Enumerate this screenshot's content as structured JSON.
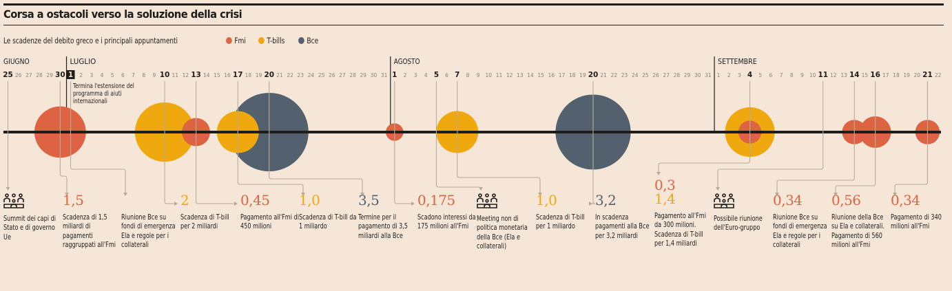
{
  "title": "Corsa a ostacoli verso la soluzione della crisi",
  "subtitle": "Le scadenze del debito greco e i principali appuntamenti",
  "legend": [
    {
      "label": "Fmi",
      "color": "#dd6342"
    },
    {
      "label": "T-bills",
      "color": "#efa80d"
    },
    {
      "label": "Bce",
      "color": "#52616d"
    }
  ],
  "colors": {
    "Fmi": "#dd6342",
    "T-bills": "#efa80d",
    "Bce": "#52616d",
    "connector": "#b9ab98",
    "axis": "#1d1d1b"
  },
  "chart_data": {
    "type": "bubble-timeline",
    "title": "Corsa a ostacoli verso la soluzione della crisi",
    "subtitle": "Le scadenze del debito greco e i principali appuntamenti",
    "unit": "miliardi di euro",
    "months": [
      {
        "label": "GIUGNO",
        "days": [
          25,
          26,
          27,
          28,
          29,
          30
        ]
      },
      {
        "label": "LUGLIO",
        "days": [
          1,
          2,
          3,
          4,
          5,
          6,
          7,
          8,
          9,
          10,
          11,
          12,
          13,
          14,
          15,
          16,
          17,
          18,
          19,
          20,
          21,
          22,
          23,
          24,
          25,
          26,
          27,
          28,
          29,
          30,
          31
        ]
      },
      {
        "label": "AGOSTO",
        "days": [
          1,
          2,
          3,
          4,
          5,
          6,
          7,
          8,
          9,
          10,
          11,
          12,
          13,
          14,
          15,
          16,
          17,
          18,
          19,
          20,
          21,
          22,
          23,
          24,
          25,
          26,
          27,
          28,
          29,
          30,
          31
        ]
      },
      {
        "label": "SETTEMBRE",
        "days": [
          1,
          2,
          3,
          4,
          5,
          6,
          7,
          8,
          9,
          10,
          11,
          12,
          13,
          14,
          15,
          16,
          17,
          18,
          19,
          20,
          21,
          22
        ]
      }
    ],
    "highlighted_days": [
      {
        "month": "GIUGNO",
        "day": 25
      },
      {
        "month": "GIUGNO",
        "day": 30
      },
      {
        "month": "LUGLIO",
        "day": 1,
        "boxed": true
      },
      {
        "month": "LUGLIO",
        "day": 10
      },
      {
        "month": "LUGLIO",
        "day": 13
      },
      {
        "month": "LUGLIO",
        "day": 17
      },
      {
        "month": "LUGLIO",
        "day": 20
      },
      {
        "month": "AGOSTO",
        "day": 1
      },
      {
        "month": "AGOSTO",
        "day": 5
      },
      {
        "month": "AGOSTO",
        "day": 7
      },
      {
        "month": "AGOSTO",
        "day": 20
      },
      {
        "month": "SETTEMBRE",
        "day": 4
      },
      {
        "month": "SETTEMBRE",
        "day": 11
      },
      {
        "month": "SETTEMBRE",
        "day": 14
      },
      {
        "month": "SETTEMBRE",
        "day": 16
      },
      {
        "month": "SETTEMBRE",
        "day": 21
      }
    ],
    "callout": {
      "month": "LUGLIO",
      "day": 1,
      "text": "Termina l'estensione del programma di aiuti internazionali"
    },
    "bubbles": [
      {
        "month": "GIUGNO",
        "day": 30,
        "series": "Fmi",
        "value": 1.5
      },
      {
        "month": "LUGLIO",
        "day": 10,
        "series": "T-bills",
        "value": 2.0
      },
      {
        "month": "LUGLIO",
        "day": 13,
        "series": "Fmi",
        "value": 0.45
      },
      {
        "month": "LUGLIO",
        "day": 20,
        "series": "Bce",
        "value": 3.5
      },
      {
        "month": "LUGLIO",
        "day": 17,
        "series": "T-bills",
        "value": 1.0
      },
      {
        "month": "AGOSTO",
        "day": 1,
        "series": "Fmi",
        "value": 0.175
      },
      {
        "month": "AGOSTO",
        "day": 7,
        "series": "T-bills",
        "value": 1.0
      },
      {
        "month": "AGOSTO",
        "day": 20,
        "series": "Bce",
        "value": 3.2
      },
      {
        "month": "SETTEMBRE",
        "day": 4,
        "series": "T-bills",
        "value": 1.4
      },
      {
        "month": "SETTEMBRE",
        "day": 4,
        "series": "Fmi",
        "value": 0.3
      },
      {
        "month": "SETTEMBRE",
        "day": 14,
        "series": "Fmi",
        "value": 0.34
      },
      {
        "month": "SETTEMBRE",
        "day": 16,
        "series": "Fmi",
        "value": 0.56
      },
      {
        "month": "SETTEMBRE",
        "day": 21,
        "series": "Fmi",
        "value": 0.34
      }
    ],
    "events": [
      {
        "month": "GIUGNO",
        "day": 25,
        "icon": "meeting-icon",
        "values": [],
        "text": "Summit dei capi di Stato e di governo Ue"
      },
      {
        "month": "GIUGNO",
        "day": 30,
        "icon": null,
        "values": [
          {
            "v": "1,5",
            "series": "Fmi"
          }
        ],
        "text": "Scadenza di 1,5 miliardi di pagamenti raggruppati all'Fmi"
      },
      {
        "month": "LUGLIO",
        "day": 1,
        "icon": null,
        "values": [],
        "text": "Riunione Bce su fondi di emergenza Ela e regole per i collaterali"
      },
      {
        "month": "LUGLIO",
        "day": 10,
        "icon": null,
        "values": [
          {
            "v": "2",
            "series": "T-bills"
          }
        ],
        "text": "Scadenza di T-bill per 2 miliardi"
      },
      {
        "month": "LUGLIO",
        "day": 13,
        "icon": null,
        "values": [
          {
            "v": "0,45",
            "series": "Fmi"
          }
        ],
        "text": "Pagamento all'Fmi di 450 milioni"
      },
      {
        "month": "LUGLIO",
        "day": 17,
        "icon": null,
        "values": [
          {
            "v": "1,0",
            "series": "T-bills"
          }
        ],
        "text": "Scadenza di T-bill da 1 miliardo"
      },
      {
        "month": "LUGLIO",
        "day": 20,
        "icon": null,
        "values": [
          {
            "v": "3,5",
            "series": "Bce"
          }
        ],
        "text": "Termine per il pagamento di 3,5 miliardi alla Bce"
      },
      {
        "month": "AGOSTO",
        "day": 1,
        "icon": null,
        "values": [
          {
            "v": "0,175",
            "series": "Fmi"
          }
        ],
        "text": "Scadono interessi da 175 milioni all'Fmi"
      },
      {
        "month": "AGOSTO",
        "day": 5,
        "icon": "meeting-icon",
        "values": [],
        "text": "Meeting non di politica monetaria della Bce (Ela e collaterali)"
      },
      {
        "month": "AGOSTO",
        "day": 7,
        "icon": null,
        "values": [
          {
            "v": "1,0",
            "series": "T-bills"
          }
        ],
        "text": "Scadenza di T-bill per 1 miliardo"
      },
      {
        "month": "AGOSTO",
        "day": 20,
        "icon": null,
        "values": [
          {
            "v": "3,2",
            "series": "Bce"
          }
        ],
        "text": "In scadenza pagamenti alla Bce per 3,2 miliardi"
      },
      {
        "month": "SETTEMBRE",
        "day": 4,
        "icon": null,
        "values": [
          {
            "v": "0,3",
            "series": "Fmi"
          },
          {
            "v": "1,4",
            "series": "T-bills"
          }
        ],
        "text": "Pagamento all'Fmi da 300 milioni. Scadenza di T-bill per 1,4 miliardi"
      },
      {
        "month": "SETTEMBRE",
        "day": 11,
        "icon": "meeting-icon",
        "values": [],
        "text": "Possibile riunione dell'Euro-gruppo"
      },
      {
        "month": "SETTEMBRE",
        "day": 14,
        "icon": null,
        "values": [
          {
            "v": "0,34",
            "series": "Fmi"
          }
        ],
        "text": "Riunione Bce su fondi di emergenza Ela e regole per i collaterali"
      },
      {
        "month": "SETTEMBRE",
        "day": 16,
        "icon": null,
        "values": [
          {
            "v": "0,56",
            "series": "Fmi"
          }
        ],
        "text": "Riunione della Bce su Ela e collaterali. Pagamento di 560 milioni all'Fmi"
      },
      {
        "month": "SETTEMBRE",
        "day": 21,
        "icon": null,
        "values": [
          {
            "v": "0,34",
            "series": "Fmi"
          }
        ],
        "text": "Pagamento di 340 milioni all'Fmi"
      }
    ]
  }
}
